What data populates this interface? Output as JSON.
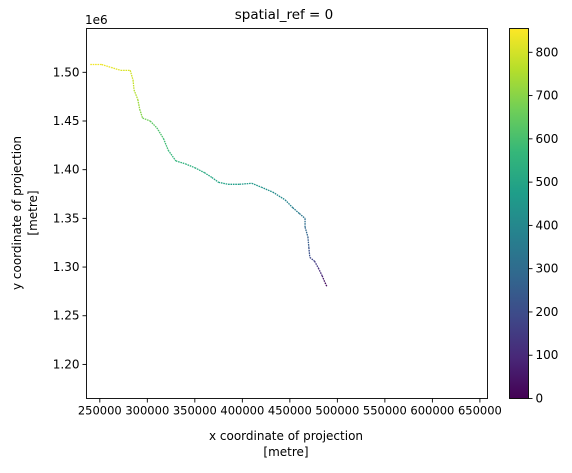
{
  "chart_data": {
    "type": "heatmap",
    "title": "spatial_ref = 0",
    "xlabel": "x coordinate of projection",
    "xlabel_units": "[metre]",
    "ylabel": "y coordinate of projection",
    "ylabel_units": "[metre]",
    "y_offset_label": "1e6",
    "xlim": [
      236000,
      658000
    ],
    "ylim": [
      1.165,
      1.545
    ],
    "x_ticks": [
      250000,
      300000,
      350000,
      400000,
      450000,
      500000,
      550000,
      600000,
      650000
    ],
    "x_tick_labels": [
      "250000",
      "300000",
      "350000",
      "400000",
      "450000",
      "500000",
      "550000",
      "600000",
      "650000"
    ],
    "y_ticks": [
      1.2,
      1.25,
      1.3,
      1.35,
      1.4,
      1.45,
      1.5
    ],
    "y_tick_labels": [
      "1.20",
      "1.25",
      "1.30",
      "1.35",
      "1.40",
      "1.45",
      "1.50"
    ],
    "colorbar": {
      "range": [
        0,
        855
      ],
      "ticks": [
        0,
        100,
        200,
        300,
        400,
        500,
        600,
        700,
        800
      ],
      "tick_labels": [
        "0",
        "100",
        "200",
        "300",
        "400",
        "500",
        "600",
        "700",
        "800"
      ],
      "colormap": [
        "#440154",
        "#482878",
        "#3e4989",
        "#31688e",
        "#26828e",
        "#1f9e89",
        "#35b779",
        "#6ece58",
        "#b5de2b",
        "#fde725"
      ]
    },
    "grid": false,
    "series": [
      {
        "points": [
          {
            "x": 240000,
            "y": 1.508,
            "v": 840
          },
          {
            "x": 252000,
            "y": 1.508,
            "v": 835
          },
          {
            "x": 262000,
            "y": 1.505,
            "v": 825
          },
          {
            "x": 272000,
            "y": 1.502,
            "v": 815
          },
          {
            "x": 282000,
            "y": 1.502,
            "v": 800
          },
          {
            "x": 285000,
            "y": 1.492,
            "v": 790
          },
          {
            "x": 286000,
            "y": 1.482,
            "v": 770
          },
          {
            "x": 290000,
            "y": 1.472,
            "v": 740
          },
          {
            "x": 292000,
            "y": 1.462,
            "v": 710
          },
          {
            "x": 295000,
            "y": 1.453,
            "v": 680
          },
          {
            "x": 303000,
            "y": 1.45,
            "v": 650
          },
          {
            "x": 310000,
            "y": 1.443,
            "v": 620
          },
          {
            "x": 317000,
            "y": 1.432,
            "v": 595
          },
          {
            "x": 322000,
            "y": 1.42,
            "v": 575
          },
          {
            "x": 330000,
            "y": 1.409,
            "v": 555
          },
          {
            "x": 340000,
            "y": 1.406,
            "v": 545
          },
          {
            "x": 350000,
            "y": 1.402,
            "v": 535
          },
          {
            "x": 360000,
            "y": 1.397,
            "v": 520
          },
          {
            "x": 368000,
            "y": 1.392,
            "v": 505
          },
          {
            "x": 375000,
            "y": 1.387,
            "v": 495
          },
          {
            "x": 385000,
            "y": 1.385,
            "v": 485
          },
          {
            "x": 397000,
            "y": 1.385,
            "v": 470
          },
          {
            "x": 410000,
            "y": 1.386,
            "v": 455
          },
          {
            "x": 420000,
            "y": 1.382,
            "v": 440
          },
          {
            "x": 432000,
            "y": 1.377,
            "v": 420
          },
          {
            "x": 445000,
            "y": 1.369,
            "v": 395
          },
          {
            "x": 453000,
            "y": 1.361,
            "v": 370
          },
          {
            "x": 460000,
            "y": 1.355,
            "v": 345
          },
          {
            "x": 466000,
            "y": 1.35,
            "v": 320
          },
          {
            "x": 466000,
            "y": 1.341,
            "v": 295
          },
          {
            "x": 469000,
            "y": 1.331,
            "v": 265
          },
          {
            "x": 470000,
            "y": 1.32,
            "v": 230
          },
          {
            "x": 471000,
            "y": 1.31,
            "v": 195
          },
          {
            "x": 476000,
            "y": 1.306,
            "v": 160
          },
          {
            "x": 480000,
            "y": 1.299,
            "v": 120
          },
          {
            "x": 484000,
            "y": 1.291,
            "v": 80
          },
          {
            "x": 487000,
            "y": 1.284,
            "v": 40
          },
          {
            "x": 489000,
            "y": 1.28,
            "v": 5
          }
        ]
      }
    ]
  }
}
